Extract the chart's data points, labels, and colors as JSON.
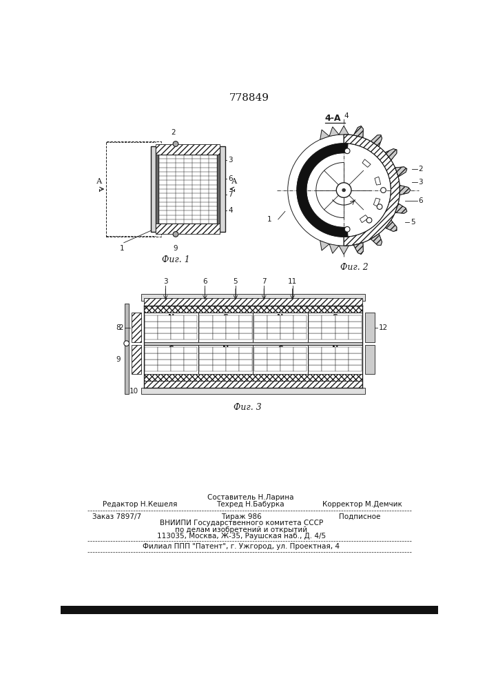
{
  "patent_number": "778849",
  "bg_color": "#ffffff",
  "line_color": "#1a1a1a",
  "text_color": "#111111",
  "fig1_label": "Фиг. 1",
  "fig2_label": "Фиг. 2",
  "fig3_label": "Фиг. 3",
  "section_label": "4-А"
}
